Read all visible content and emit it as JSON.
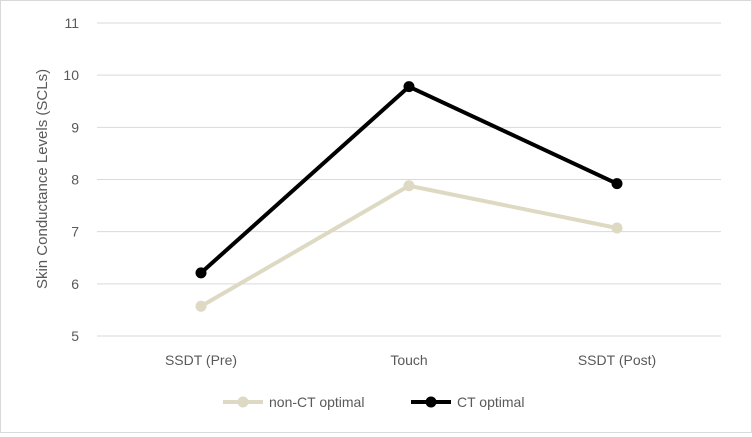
{
  "chart_data": {
    "type": "line",
    "title": "",
    "xlabel": "",
    "ylabel": "Skin Conductance Levels (SCLs)",
    "categories": [
      "SSDT (Pre)",
      "Touch",
      "SSDT (Post)"
    ],
    "ylim": [
      5,
      11
    ],
    "yticks": [
      5,
      6,
      7,
      8,
      9,
      10,
      11
    ],
    "grid": true,
    "legend_position": "bottom",
    "series": [
      {
        "name": "non-CT optimal",
        "values": [
          5.57,
          7.88,
          7.07
        ],
        "color": "#ddd9c3"
      },
      {
        "name": "CT optimal",
        "values": [
          6.21,
          9.78,
          7.92
        ],
        "color": "#000000"
      }
    ]
  },
  "colors": {
    "gridline": "#d9d9d9",
    "text": "#595959",
    "border": "#d9d9d9"
  }
}
